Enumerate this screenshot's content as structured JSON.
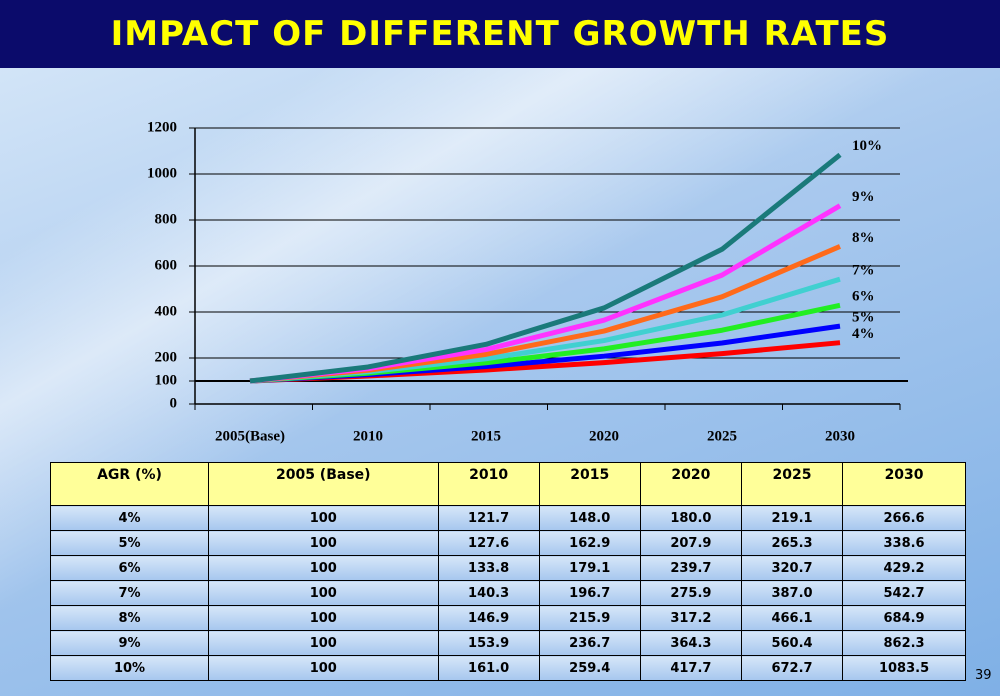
{
  "title": "IMPACT OF DIFFERENT GROWTH RATES",
  "chart_data": {
    "type": "line",
    "categories": [
      "2005(Base)",
      "2010",
      "2015",
      "2020",
      "2025",
      "2030"
    ],
    "series": [
      {
        "name": "4%",
        "color": "#ff0000",
        "values": [
          100,
          121.7,
          148.0,
          180.0,
          219.1,
          266.6
        ]
      },
      {
        "name": "5%",
        "color": "#0000ff",
        "values": [
          100,
          127.6,
          162.9,
          207.9,
          265.3,
          338.6
        ]
      },
      {
        "name": "6%",
        "color": "#22ee22",
        "values": [
          100,
          133.8,
          179.1,
          239.7,
          320.7,
          429.2
        ]
      },
      {
        "name": "7%",
        "color": "#40d0d0",
        "values": [
          100,
          140.3,
          196.7,
          275.9,
          387.0,
          542.7
        ]
      },
      {
        "name": "8%",
        "color": "#ff6a1a",
        "values": [
          100,
          146.9,
          215.9,
          317.2,
          466.1,
          684.9
        ]
      },
      {
        "name": "9%",
        "color": "#ff33ff",
        "values": [
          100,
          153.9,
          236.7,
          364.3,
          560.4,
          862.3
        ]
      },
      {
        "name": "10%",
        "color": "#1a7a7a",
        "values": [
          100,
          161.0,
          259.4,
          417.7,
          672.7,
          1083.5
        ]
      }
    ],
    "ylim": [
      0,
      1200
    ],
    "yticks": [
      0,
      100,
      200,
      400,
      600,
      800,
      1000,
      1200
    ],
    "grid": true
  },
  "table": {
    "header": [
      "AGR (%)",
      "2005 (Base)",
      "2010",
      "2015",
      "2020",
      "2025",
      "2030"
    ],
    "rows": [
      [
        "4%",
        "100",
        "121.7",
        "148.0",
        "180.0",
        "219.1",
        "266.6"
      ],
      [
        "5%",
        "100",
        "127.6",
        "162.9",
        "207.9",
        "265.3",
        "338.6"
      ],
      [
        "6%",
        "100",
        "133.8",
        "179.1",
        "239.7",
        "320.7",
        "429.2"
      ],
      [
        "7%",
        "100",
        "140.3",
        "196.7",
        "275.9",
        "387.0",
        "542.7"
      ],
      [
        "8%",
        "100",
        "146.9",
        "215.9",
        "317.2",
        "466.1",
        "684.9"
      ],
      [
        "9%",
        "100",
        "153.9",
        "236.7",
        "364.3",
        "560.4",
        "862.3"
      ],
      [
        "10%",
        "100",
        "161.0",
        "259.4",
        "417.7",
        "672.7",
        "1083.5"
      ]
    ]
  },
  "page_number": "39"
}
